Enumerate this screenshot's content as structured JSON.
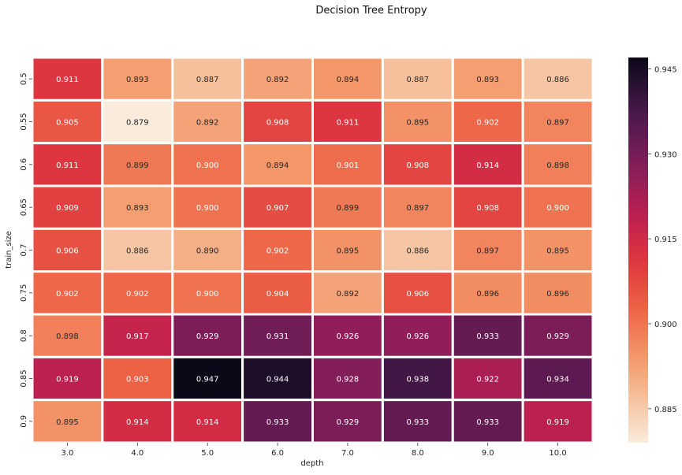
{
  "chart_data": {
    "type": "heatmap",
    "title": "Decision Tree Entropy",
    "xlabel": "depth",
    "ylabel": "train_size",
    "x": [
      "3.0",
      "4.0",
      "5.0",
      "6.0",
      "7.0",
      "8.0",
      "9.0",
      "10.0"
    ],
    "y": [
      "0.5",
      "0.55",
      "0.6",
      "0.65",
      "0.7",
      "0.75",
      "0.8",
      "0.85",
      "0.9"
    ],
    "values": [
      [
        0.911,
        0.893,
        0.887,
        0.892,
        0.894,
        0.887,
        0.893,
        0.886
      ],
      [
        0.905,
        0.879,
        0.892,
        0.908,
        0.911,
        0.895,
        0.902,
        0.897
      ],
      [
        0.911,
        0.899,
        0.9,
        0.894,
        0.901,
        0.908,
        0.914,
        0.898
      ],
      [
        0.909,
        0.893,
        0.9,
        0.907,
        0.899,
        0.897,
        0.908,
        0.9
      ],
      [
        0.906,
        0.886,
        0.89,
        0.902,
        0.895,
        0.886,
        0.897,
        0.895
      ],
      [
        0.902,
        0.902,
        0.9,
        0.904,
        0.892,
        0.906,
        0.896,
        0.896
      ],
      [
        0.898,
        0.917,
        0.929,
        0.931,
        0.926,
        0.926,
        0.933,
        0.929
      ],
      [
        0.919,
        0.903,
        0.947,
        0.944,
        0.928,
        0.938,
        0.922,
        0.934
      ],
      [
        0.895,
        0.914,
        0.914,
        0.933,
        0.929,
        0.933,
        0.933,
        0.919
      ]
    ],
    "value_labels": [
      [
        "0.911",
        "0.893",
        "0.887",
        "0.892",
        "0.894",
        "0.887",
        "0.893",
        "0.886"
      ],
      [
        "0.905",
        "0.879",
        "0.892",
        "0.908",
        "0.911",
        "0.895",
        "0.902",
        "0.897"
      ],
      [
        "0.911",
        "0.899",
        "0.900",
        "0.894",
        "0.901",
        "0.908",
        "0.914",
        "0.898"
      ],
      [
        "0.909",
        "0.893",
        "0.900",
        "0.907",
        "0.899",
        "0.897",
        "0.908",
        "0.900"
      ],
      [
        "0.906",
        "0.886",
        "0.890",
        "0.902",
        "0.895",
        "0.886",
        "0.897",
        "0.895"
      ],
      [
        "0.902",
        "0.902",
        "0.900",
        "0.904",
        "0.892",
        "0.906",
        "0.896",
        "0.896"
      ],
      [
        "0.898",
        "0.917",
        "0.929",
        "0.931",
        "0.926",
        "0.926",
        "0.933",
        "0.929"
      ],
      [
        "0.919",
        "0.903",
        "0.947",
        "0.944",
        "0.928",
        "0.938",
        "0.922",
        "0.934"
      ],
      [
        "0.895",
        "0.914",
        "0.914",
        "0.933",
        "0.929",
        "0.933",
        "0.933",
        "0.919"
      ]
    ],
    "colorbar": {
      "range": [
        0.879,
        0.947
      ],
      "ticks": [
        0.885,
        0.9,
        0.915,
        0.93,
        0.945
      ],
      "tick_labels": [
        "0.885",
        "0.900",
        "0.915",
        "0.930",
        "0.945"
      ],
      "colormap": "rocket_r"
    },
    "grid": false,
    "cell_separator_color": "#ffffff"
  }
}
